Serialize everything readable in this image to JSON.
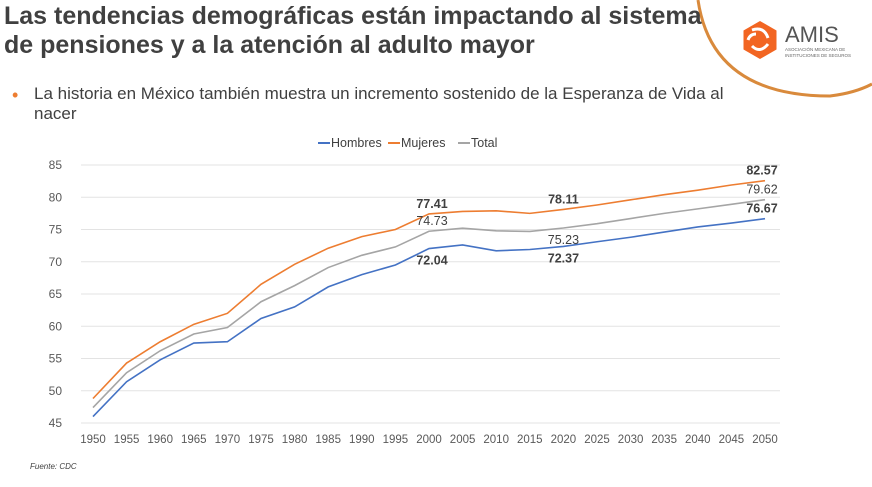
{
  "slide": {
    "title": "Las tendencias demográficas están impactando al sistema de pensiones y a la atención al adulto mayor",
    "bullet": "La historia en México también muestra un incremento sostenido de la Esperanza de Vida al nacer",
    "source": "Fuente: CDC",
    "logo": {
      "name": "AMIS",
      "tagline": "ASOCIACIÓN MEXICANA DE INSTITUCIONES DE SEGUROS",
      "color": "#f26522"
    }
  },
  "chart_data": {
    "type": "line",
    "x": [
      1950,
      1955,
      1960,
      1965,
      1970,
      1975,
      1980,
      1985,
      1990,
      1995,
      2000,
      2005,
      2010,
      2015,
      2020,
      2025,
      2030,
      2035,
      2040,
      2045,
      2050
    ],
    "ylim": [
      45,
      85
    ],
    "yticks": [
      45,
      50,
      55,
      60,
      65,
      70,
      75,
      80,
      85
    ],
    "grid": true,
    "legend": "top",
    "series": [
      {
        "name": "Hombres",
        "color": "#4472c4",
        "values": [
          46.0,
          51.4,
          54.8,
          57.4,
          57.6,
          61.2,
          63.0,
          66.1,
          68.0,
          69.5,
          72.04,
          72.6,
          71.7,
          71.9,
          72.37,
          73.1,
          73.8,
          74.6,
          75.4,
          76.0,
          76.67
        ]
      },
      {
        "name": "Mujeres",
        "color": "#ed7d31",
        "values": [
          48.8,
          54.3,
          57.6,
          60.3,
          62.0,
          66.5,
          69.6,
          72.1,
          73.9,
          75.0,
          77.41,
          77.8,
          77.9,
          77.5,
          78.11,
          78.8,
          79.6,
          80.4,
          81.1,
          81.9,
          82.57
        ]
      },
      {
        "name": "Total",
        "color": "#a5a5a5",
        "values": [
          47.4,
          52.8,
          56.2,
          58.8,
          59.8,
          63.8,
          66.3,
          69.1,
          71.0,
          72.3,
          74.73,
          75.2,
          74.8,
          74.7,
          75.23,
          75.9,
          76.7,
          77.5,
          78.2,
          78.9,
          79.62
        ]
      }
    ],
    "data_labels": [
      {
        "series": "Mujeres",
        "x": 2000,
        "text": "77.41",
        "bold": true,
        "pos": "above"
      },
      {
        "series": "Total",
        "x": 2000,
        "text": "74.73",
        "bold": false,
        "pos": "above"
      },
      {
        "series": "Hombres",
        "x": 2000,
        "text": "72.04",
        "bold": true,
        "pos": "below"
      },
      {
        "series": "Mujeres",
        "x": 2020,
        "text": "78.11",
        "bold": true,
        "pos": "above"
      },
      {
        "series": "Total",
        "x": 2020,
        "text": "75.23",
        "bold": false,
        "pos": "below"
      },
      {
        "series": "Hombres",
        "x": 2020,
        "text": "72.37",
        "bold": true,
        "pos": "below"
      },
      {
        "series": "Mujeres",
        "x": 2050,
        "text": "82.57",
        "bold": true,
        "pos": "above"
      },
      {
        "series": "Total",
        "x": 2050,
        "text": "79.62",
        "bold": false,
        "pos": "above"
      },
      {
        "series": "Hombres",
        "x": 2050,
        "text": "76.67",
        "bold": true,
        "pos": "above"
      }
    ]
  }
}
